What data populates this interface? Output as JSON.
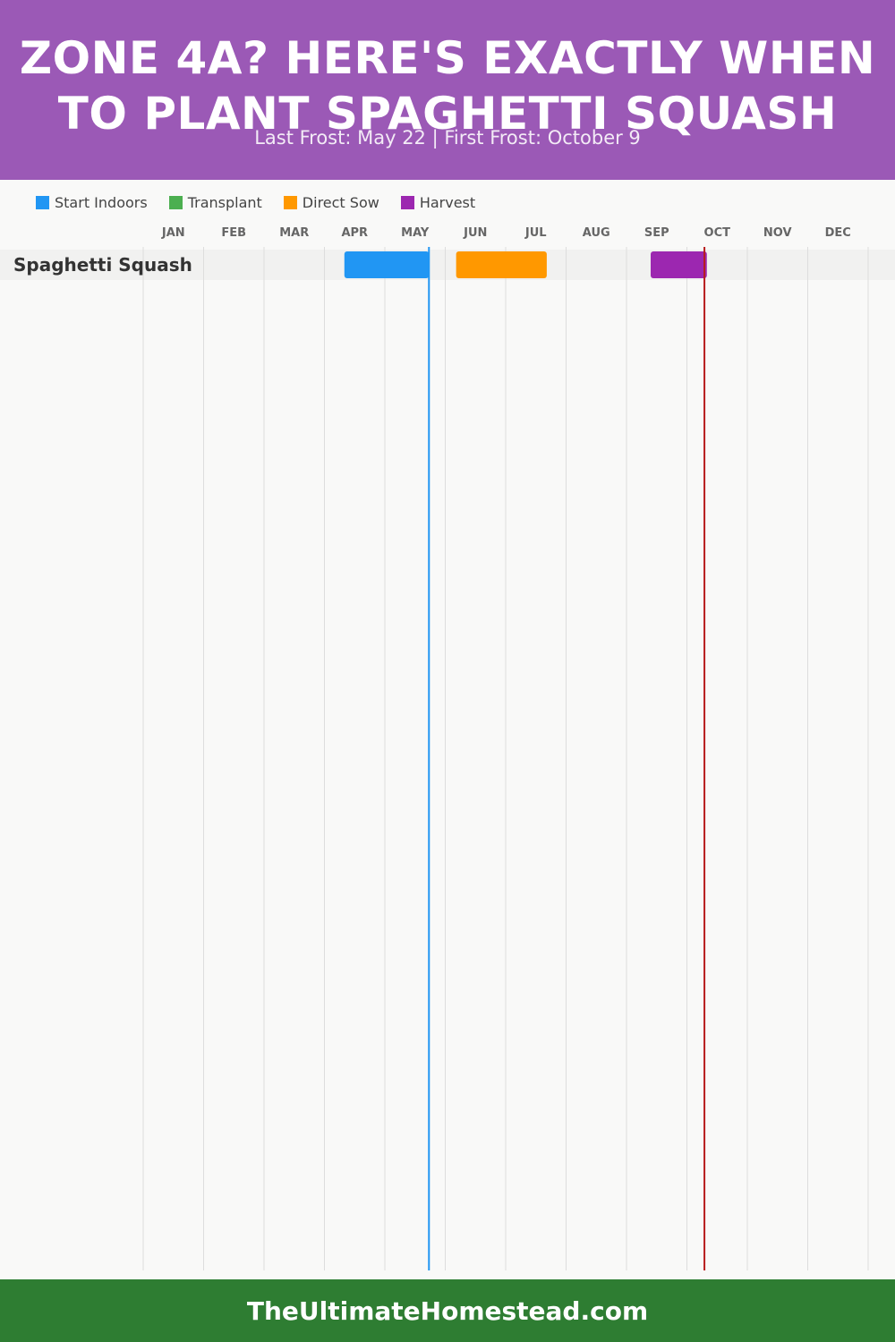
{
  "header": {
    "title": "ZONE 4A? HERE'S EXACTLY WHEN TO PLANT SPAGHETTI SQUASH",
    "subtitle": "Last Frost: May 22 | First Frost: October 9"
  },
  "legend": [
    {
      "label": "Start Indoors",
      "color": "#2196f3"
    },
    {
      "label": "Transplant",
      "color": "#4caf50"
    },
    {
      "label": "Direct Sow",
      "color": "#ff9800"
    },
    {
      "label": "Harvest",
      "color": "#9c27b0"
    }
  ],
  "chart_data": {
    "type": "gantt",
    "months": [
      "JAN",
      "FEB",
      "MAR",
      "APR",
      "MAY",
      "JUN",
      "JUL",
      "AUG",
      "SEP",
      "OCT",
      "NOV",
      "DEC"
    ],
    "rows": [
      {
        "label": "Spaghetti Squash",
        "segments": [
          {
            "phase": "Start Indoors",
            "start_month": 3.33,
            "end_month": 4.73,
            "color": "#2196f3"
          },
          {
            "phase": "Direct Sow",
            "start_month": 5.18,
            "end_month": 6.68,
            "color": "#ff9800"
          },
          {
            "phase": "Harvest",
            "start_month": 8.4,
            "end_month": 9.33,
            "color": "#9c27b0"
          }
        ]
      }
    ],
    "markers": [
      {
        "name": "last-frost",
        "month": 4.73,
        "color": "#2196f3"
      },
      {
        "name": "first-frost",
        "month": 9.29,
        "color": "#b71c1c"
      }
    ]
  },
  "footer": {
    "text": "TheUltimateHomestead.com"
  }
}
